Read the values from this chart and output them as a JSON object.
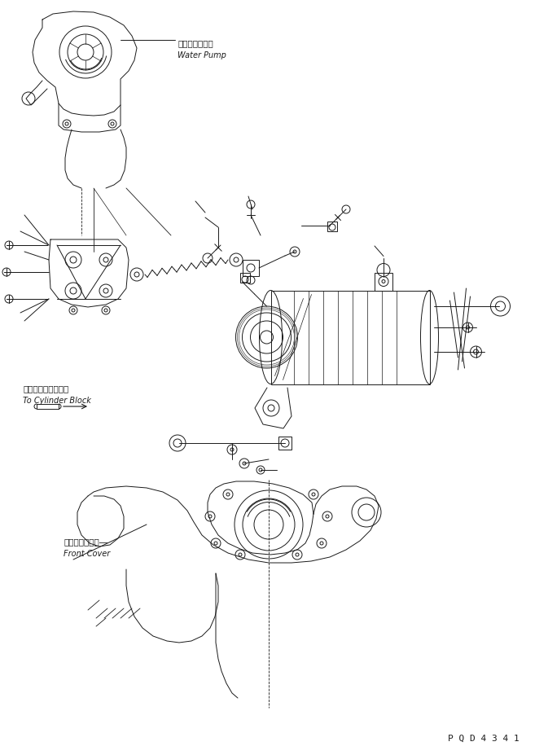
{
  "background_color": "#ffffff",
  "line_color": "#1a1a1a",
  "fig_width": 6.73,
  "fig_height": 9.28,
  "dpi": 100,
  "labels": {
    "water_pump_jp": "ウォータポンプ",
    "water_pump_en": "Water Pump",
    "cylinder_block_jp": "シリンダブロックへ",
    "cylinder_block_en": "To Cylinder Block",
    "front_cover_jp": "フロントカバー―",
    "front_cover_en": "Front Cover",
    "part_number": "P Q D 4 3 4 1"
  }
}
